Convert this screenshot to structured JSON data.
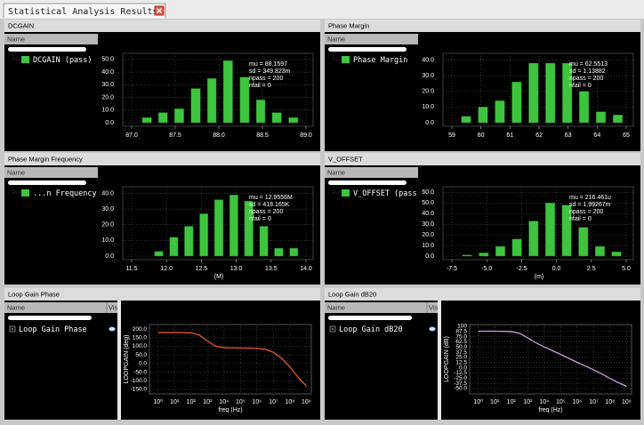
{
  "tab": {
    "title": "Statistical Analysis Results"
  },
  "panels": [
    {
      "title": "DCGAIN",
      "column_header": "Name",
      "item": "DCGAIN (pass)"
    },
    {
      "title": "Phase Margin",
      "column_header": "Name",
      "item": "Phase Margin"
    },
    {
      "title": "Phase Margin Frequency",
      "column_header": "Name",
      "item": "...n Frequency"
    },
    {
      "title": "V_OFFSET",
      "column_header": "Name",
      "item": "V_OFFSET (pass"
    },
    {
      "title": "Loop Gain Phase",
      "column_header": "Name",
      "visible_header": "Vis",
      "item": "Loop Gain Phase"
    },
    {
      "title": "Loop Gain dB20",
      "column_header": "Name",
      "visible_header": "Vis",
      "item": "Loop Gain dB20"
    }
  ],
  "chart_data": [
    {
      "type": "histogram",
      "color": "#3ec43e",
      "grid": true,
      "bins": [
        87.08,
        87.27,
        87.45,
        87.64,
        87.83,
        88.01,
        88.2,
        88.39,
        88.57,
        88.76,
        88.95
      ],
      "values": [
        4,
        8,
        11,
        27,
        35,
        49,
        36,
        18,
        8,
        4
      ],
      "xlim": [
        87,
        89
      ],
      "xticks": [
        {
          "value": 87,
          "label": "87.0"
        },
        87.5,
        {
          "value": 88,
          "label": "88.0"
        },
        88.5,
        {
          "value": 89,
          "label": "89.0"
        }
      ],
      "ylim": [
        0,
        52
      ],
      "yticks": [
        {
          "value": 0,
          "label": "0.0"
        },
        {
          "value": 10,
          "label": "10.0"
        },
        {
          "value": 20,
          "label": "20.0"
        },
        {
          "value": 30,
          "label": "30.0"
        },
        {
          "value": 40,
          "label": "40.0"
        },
        {
          "value": 50,
          "label": "50.0"
        }
      ],
      "annotations": [
        "mu = 88.1597",
        "sd = 349.823m",
        "npass = 200",
        "nfail = 0"
      ]
    },
    {
      "type": "histogram",
      "color": "#3ec43e",
      "grid": true,
      "bins": [
        59.2,
        59.78,
        60.36,
        60.94,
        61.52,
        62.1,
        62.68,
        63.26,
        63.84,
        64.42,
        65.0
      ],
      "values": [
        4,
        10,
        14,
        26,
        38,
        38,
        38,
        20,
        7,
        5
      ],
      "xlim": [
        59,
        65
      ],
      "xticks": [
        59,
        60,
        61,
        62,
        63,
        64,
        65
      ],
      "ylim": [
        0,
        42
      ],
      "yticks": [
        {
          "value": 0,
          "label": "0.0"
        },
        {
          "value": 10,
          "label": "10.0"
        },
        {
          "value": 20,
          "label": "20.0"
        },
        {
          "value": 30,
          "label": "30.0"
        },
        {
          "value": 40,
          "label": "40.0"
        }
      ],
      "annotations": [
        "mu = 62.5513",
        "sd = 1.13882",
        "npass = 200",
        "nfail = 0"
      ]
    },
    {
      "type": "histogram",
      "color": "#3ec43e",
      "grid": true,
      "x_label": "(M)",
      "bins": [
        11.78,
        12.0,
        12.21,
        12.43,
        12.64,
        12.86,
        13.07,
        13.29,
        13.5,
        13.72,
        13.93
      ],
      "values": [
        3,
        12,
        19,
        27,
        36,
        39,
        35,
        19,
        5,
        5
      ],
      "xlim": [
        11.5,
        14
      ],
      "xticks": [
        11.5,
        {
          "value": 12,
          "label": "12.0"
        },
        12.5,
        {
          "value": 13,
          "label": "13.0"
        },
        13.5,
        {
          "value": 14,
          "label": "14.0"
        }
      ],
      "ylim": [
        0,
        42
      ],
      "yticks": [
        {
          "value": 0,
          "label": "0.0"
        },
        {
          "value": 10,
          "label": "10.0"
        },
        {
          "value": 20,
          "label": "20.0"
        },
        {
          "value": 30,
          "label": "30.0"
        },
        {
          "value": 40,
          "label": "40.0"
        }
      ],
      "annotations": [
        "mu = 12.9556M",
        "sd = 418.165K",
        "npass = 200",
        "nfail = 0"
      ]
    },
    {
      "type": "histogram",
      "color": "#3ec43e",
      "grid": true,
      "x_label": "(m)",
      "bins": [
        -7.0,
        -5.81,
        -4.62,
        -3.43,
        -2.24,
        -1.05,
        0.14,
        1.33,
        2.52,
        3.71,
        4.9
      ],
      "values": [
        1,
        3,
        9,
        16,
        33,
        50,
        48,
        27,
        9,
        4
      ],
      "xlim": [
        -7.5,
        5
      ],
      "xticks": [
        -7.5,
        {
          "value": -5,
          "label": "-5.0"
        },
        -2.5,
        {
          "value": 0,
          "label": "0.0"
        },
        2.5,
        {
          "value": 5,
          "label": "5.0"
        }
      ],
      "ylim": [
        0,
        62
      ],
      "yticks": [
        {
          "value": 0,
          "label": "0.0"
        },
        {
          "value": 10,
          "label": "10.0"
        },
        {
          "value": 20,
          "label": "20.0"
        },
        {
          "value": 30,
          "label": "30.0"
        },
        {
          "value": 40,
          "label": "40.0"
        },
        {
          "value": 50,
          "label": "50.0"
        },
        {
          "value": 60,
          "label": "60.0"
        }
      ],
      "annotations": [
        "mu = 216.461u",
        "sd = 1.99267m",
        "npass = 200",
        "nfail = 0"
      ]
    },
    {
      "type": "line",
      "grid": true,
      "log_x": true,
      "x_label": "freq (Hz)",
      "y_label": "LOOPGAIN (deg)",
      "x": [
        1,
        10,
        100,
        316,
        1000,
        3162,
        10000,
        100000,
        1000000,
        3160000,
        10000000,
        31600000,
        100000000,
        316000000,
        1000000000
      ],
      "series": [
        {
          "color": "#e8572a",
          "values": [
            180,
            180,
            178,
            165,
            130,
            100,
            92,
            90,
            88,
            82,
            65,
            30,
            -20,
            -80,
            -130
          ]
        }
      ],
      "xlim": [
        0.3,
        2000000000
      ],
      "xticks": [
        {
          "value": 1,
          "label": "10⁰"
        },
        {
          "value": 10,
          "label": "10¹"
        },
        {
          "value": 100,
          "label": "10²"
        },
        {
          "value": 1000,
          "label": "10³"
        },
        {
          "value": 10000,
          "label": "10⁴"
        },
        {
          "value": 100000,
          "label": "10⁵"
        },
        {
          "value": 1000000,
          "label": "10⁶"
        },
        {
          "value": 10000000,
          "label": "10⁷"
        },
        {
          "value": 100000000,
          "label": "10⁸"
        },
        {
          "value": 1000000000,
          "label": "10⁹"
        }
      ],
      "ylim": [
        -176,
        226
      ],
      "yticks": [
        {
          "value": 200,
          "label": "200.0"
        },
        {
          "value": 150,
          "label": "150.0"
        },
        {
          "value": 100,
          "label": "100.0"
        },
        {
          "value": 50,
          "label": "50.0"
        },
        {
          "value": 0,
          "label": "0.0"
        },
        {
          "value": -50,
          "label": "-50.0"
        },
        {
          "value": -100,
          "label": "-100.0"
        },
        {
          "value": -150,
          "label": "-150.0"
        }
      ]
    },
    {
      "type": "line",
      "grid": true,
      "log_x": true,
      "x_label": "freq (Hz)",
      "y_label": "LOOPGAIN (dB)",
      "x": [
        1,
        10,
        100,
        316,
        1000,
        3162,
        10000,
        100000,
        1000000,
        3160000,
        10000000,
        31600000,
        100000000,
        316000000,
        1000000000
      ],
      "series": [
        {
          "color": "#c9a0dc",
          "values": [
            88,
            88,
            87,
            83,
            72,
            60,
            50,
            32,
            13,
            4,
            -5,
            -15,
            -26,
            -36,
            -45
          ]
        }
      ],
      "xlim": [
        0.3,
        2000000000
      ],
      "xticks": [
        {
          "value": 1,
          "label": "10⁰"
        },
        {
          "value": 10,
          "label": "10¹"
        },
        {
          "value": 100,
          "label": "10²"
        },
        {
          "value": 1000,
          "label": "10³"
        },
        {
          "value": 10000,
          "label": "10⁴"
        },
        {
          "value": 100000,
          "label": "10⁵"
        },
        {
          "value": 1000000,
          "label": "10⁶"
        },
        {
          "value": 10000000,
          "label": "10⁷"
        },
        {
          "value": 100000000,
          "label": "10⁸"
        },
        {
          "value": 1000000000,
          "label": "10⁹"
        }
      ],
      "ylim": [
        -63,
        104
      ],
      "yticks": [
        100,
        87.5,
        {
          "value": 75,
          "label": "75.0"
        },
        62.5,
        {
          "value": 50,
          "label": "50.0"
        },
        37.5,
        {
          "value": 25,
          "label": "25.0"
        },
        12.5,
        {
          "value": 0,
          "label": "0.0"
        },
        -12.5,
        {
          "value": -25,
          "label": "-25.0"
        },
        -37.5,
        {
          "value": -50,
          "label": "-50.0"
        }
      ]
    }
  ]
}
